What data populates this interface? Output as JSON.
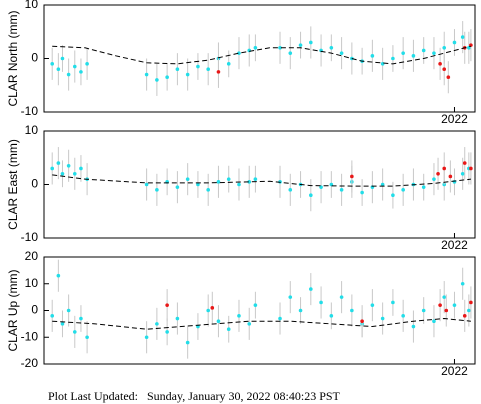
{
  "chart_data": [
    {
      "type": "scatter",
      "ylabel": "CLAR North (mm)",
      "xlim": [
        2020.0,
        2022.1
      ],
      "xticks": [
        2022
      ],
      "ylim": [
        -10,
        10
      ],
      "yticks": [
        -10,
        0,
        10
      ],
      "series": [
        {
          "color": "#22dde8",
          "x": [
            2020.04,
            2020.07,
            2020.09,
            2020.12,
            2020.15,
            2020.18,
            2020.21,
            2020.5,
            2020.55,
            2020.6,
            2020.65,
            2020.7,
            2020.75,
            2020.8,
            2020.85,
            2020.9,
            2020.95,
            2021.0,
            2021.03,
            2021.15,
            2021.2,
            2021.25,
            2021.3,
            2021.35,
            2021.4,
            2021.45,
            2021.5,
            2021.55,
            2021.6,
            2021.65,
            2021.7,
            2021.75,
            2021.8,
            2021.85,
            2021.9,
            2021.95,
            2022.0,
            2022.04,
            2022.07
          ],
          "values": [
            -1,
            -2,
            0,
            -3,
            -1.5,
            -2.5,
            -1,
            -3,
            -4,
            -3.5,
            -2,
            -3,
            -1.5,
            -2,
            0,
            -1,
            1,
            1.5,
            2,
            2,
            1,
            2.5,
            3,
            1.5,
            2,
            1,
            0,
            -0.5,
            0.5,
            -1,
            0,
            1,
            0.5,
            1.5,
            1,
            2,
            3,
            4,
            2
          ],
          "errors": [
            3,
            3,
            2.5,
            3,
            3,
            2.5,
            3,
            3,
            3,
            2.5,
            3,
            3,
            2.5,
            3,
            3,
            2.5,
            3,
            3,
            2.5,
            3,
            3,
            2.5,
            3,
            3,
            2.5,
            3,
            3,
            2.5,
            3,
            3,
            2.5,
            3,
            3,
            2.5,
            3,
            3,
            2.5,
            3,
            3
          ]
        },
        {
          "color": "#e81818",
          "x": [
            2020.85,
            2021.93,
            2021.95,
            2021.97,
            2022.05,
            2022.08
          ],
          "values": [
            -2.5,
            -1,
            -2,
            -3.5,
            2,
            2.5
          ],
          "errors": [
            3,
            3,
            3,
            3,
            3,
            3
          ]
        },
        {
          "color": "#000000",
          "style": "dashed",
          "x": [
            2020.04,
            2020.2,
            2020.35,
            2020.5,
            2020.65,
            2020.8,
            2020.95,
            2021.1,
            2021.25,
            2021.4,
            2021.55,
            2021.7,
            2021.85,
            2022.0,
            2022.08
          ],
          "values": [
            2.3,
            2,
            0.5,
            -0.8,
            -1,
            -0.3,
            1,
            2,
            2,
            1,
            -0.5,
            -1,
            0,
            1.5,
            2.3
          ]
        }
      ]
    },
    {
      "type": "scatter",
      "ylabel": "CLAR East (mm)",
      "xlim": [
        2020.0,
        2022.1
      ],
      "xticks": [
        2022
      ],
      "ylim": [
        -10,
        10
      ],
      "yticks": [
        -10,
        0,
        10
      ],
      "series": [
        {
          "color": "#22dde8",
          "x": [
            2020.04,
            2020.07,
            2020.09,
            2020.12,
            2020.15,
            2020.18,
            2020.21,
            2020.5,
            2020.55,
            2020.6,
            2020.65,
            2020.7,
            2020.75,
            2020.8,
            2020.85,
            2020.9,
            2020.95,
            2021.0,
            2021.03,
            2021.15,
            2021.2,
            2021.25,
            2021.3,
            2021.35,
            2021.4,
            2021.45,
            2021.5,
            2021.55,
            2021.6,
            2021.65,
            2021.7,
            2021.75,
            2021.8,
            2021.85,
            2021.9,
            2021.95,
            2022.0,
            2022.04,
            2022.07
          ],
          "values": [
            3,
            4,
            2,
            3.5,
            2,
            3,
            1,
            0,
            -1,
            0.5,
            -0.5,
            1,
            0,
            -1,
            0.5,
            1,
            0,
            0.5,
            1,
            0.5,
            -1,
            0,
            -2,
            -0.5,
            0,
            -1,
            0.5,
            -1.5,
            -0.5,
            0,
            -2,
            -1,
            0,
            -0.5,
            1,
            0,
            0.5,
            2,
            3
          ],
          "errors": [
            3,
            3,
            2.5,
            3,
            3,
            2.5,
            3,
            3,
            3,
            2.5,
            3,
            3,
            2.5,
            3,
            3,
            2.5,
            3,
            3,
            2.5,
            3,
            3,
            2.5,
            3,
            3,
            2.5,
            3,
            3,
            2.5,
            3,
            3,
            2.5,
            3,
            3,
            2.5,
            3,
            3,
            2.5,
            3,
            3
          ]
        },
        {
          "color": "#e81818",
          "x": [
            2021.5,
            2021.92,
            2021.95,
            2021.98,
            2022.05,
            2022.08
          ],
          "values": [
            1.5,
            2,
            3,
            1.5,
            4,
            3
          ],
          "errors": [
            3,
            3,
            3,
            3,
            3,
            3
          ]
        },
        {
          "color": "#000000",
          "style": "dashed",
          "x": [
            2020.04,
            2020.2,
            2020.5,
            2020.8,
            2021.1,
            2021.3,
            2021.5,
            2021.7,
            2021.9,
            2022.08
          ],
          "values": [
            1.8,
            1,
            0.3,
            0.3,
            0.6,
            -0.2,
            -0.3,
            -0.3,
            0.2,
            1
          ]
        }
      ]
    },
    {
      "type": "scatter",
      "ylabel": "CLAR Up (mm)",
      "xlim": [
        2020.0,
        2022.1
      ],
      "xticks": [
        2022
      ],
      "ylim": [
        -20,
        20
      ],
      "yticks": [
        -20,
        -10,
        0,
        10,
        20
      ],
      "series": [
        {
          "color": "#22dde8",
          "x": [
            2020.04,
            2020.07,
            2020.09,
            2020.12,
            2020.15,
            2020.18,
            2020.21,
            2020.5,
            2020.55,
            2020.6,
            2020.65,
            2020.7,
            2020.75,
            2020.8,
            2020.85,
            2020.9,
            2020.95,
            2021.0,
            2021.03,
            2021.15,
            2021.2,
            2021.25,
            2021.3,
            2021.35,
            2021.4,
            2021.45,
            2021.5,
            2021.55,
            2021.6,
            2021.65,
            2021.7,
            2021.75,
            2021.8,
            2021.85,
            2021.9,
            2021.95,
            2022.0,
            2022.04,
            2022.07
          ],
          "values": [
            -2,
            13,
            -5,
            0,
            -8,
            -3,
            -10,
            -10,
            -5,
            -8,
            -3,
            -12,
            -6,
            0,
            -4,
            -7,
            -2,
            -5,
            2,
            -3,
            5,
            0,
            8,
            3,
            -2,
            5,
            0,
            -5,
            2,
            -3,
            3,
            -2,
            -6,
            0,
            -4,
            5,
            2,
            10,
            0
          ],
          "errors": [
            6,
            6,
            5,
            6,
            6,
            5,
            6,
            6,
            6,
            5,
            6,
            6,
            5,
            6,
            6,
            5,
            6,
            6,
            5,
            6,
            6,
            5,
            6,
            6,
            5,
            6,
            6,
            5,
            6,
            6,
            5,
            6,
            6,
            5,
            6,
            6,
            5,
            6,
            6
          ]
        },
        {
          "color": "#e81818",
          "x": [
            2020.6,
            2020.82,
            2021.55,
            2021.93,
            2021.96,
            2022.05,
            2022.08
          ],
          "values": [
            2,
            1,
            -4,
            2,
            0,
            -2,
            3
          ],
          "errors": [
            6,
            6,
            6,
            6,
            6,
            6,
            6
          ]
        },
        {
          "color": "#000000",
          "style": "dashed",
          "x": [
            2020.04,
            2020.25,
            2020.5,
            2020.75,
            2021.0,
            2021.2,
            2021.4,
            2021.6,
            2021.8,
            2021.95,
            2022.08
          ],
          "values": [
            -4,
            -5,
            -7,
            -5.5,
            -4,
            -4,
            -5,
            -6,
            -4,
            -3,
            -4
          ]
        }
      ]
    }
  ],
  "footer": "Plot Last Updated:   Sunday, January 30, 2022 08:40:23 PST"
}
